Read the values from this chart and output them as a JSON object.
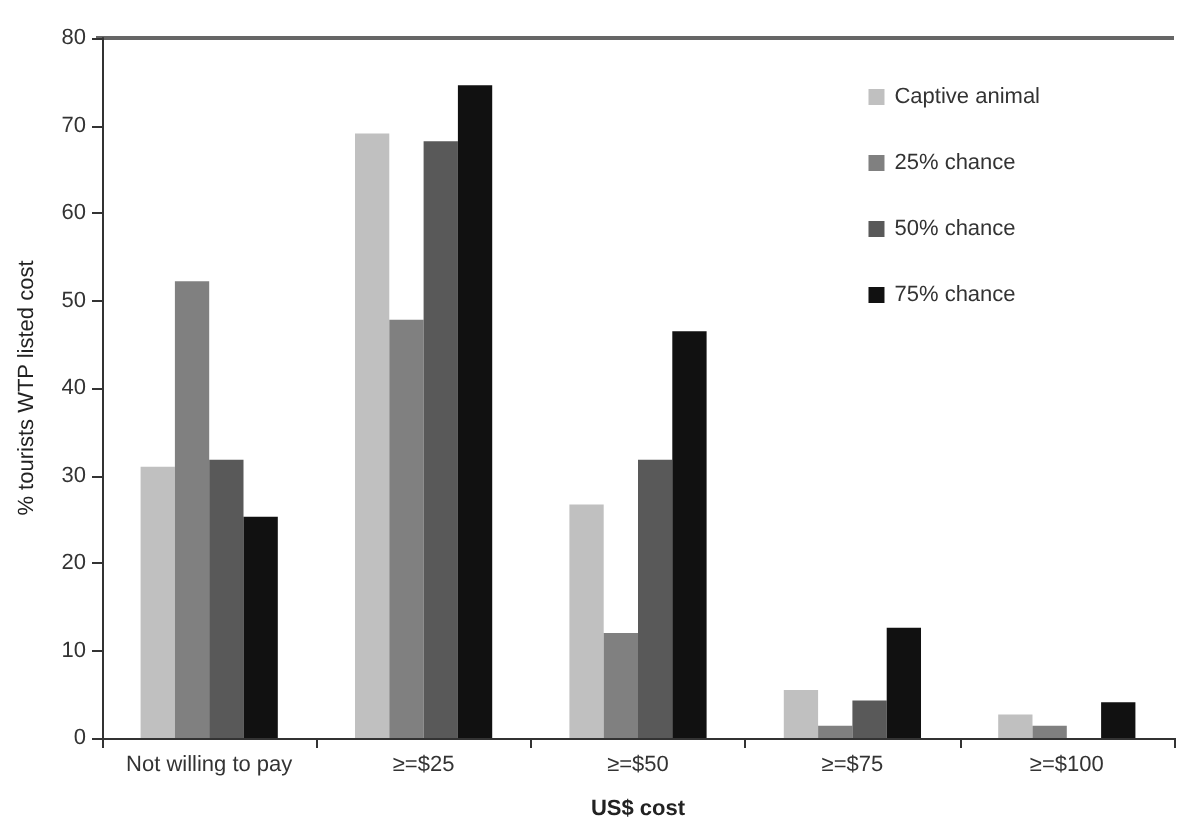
{
  "chart_data": {
    "type": "bar",
    "xlabel": "US$ cost",
    "ylabel": "% tourists WTP listed cost",
    "categories": [
      "Not willing to pay",
      "≥=$25",
      "≥=$50",
      "≥=$75",
      "≥=$100"
    ],
    "series": [
      {
        "name": "Captive animal",
        "color": "#c0c0c0",
        "values": [
          31,
          69.1,
          26.7,
          5.5,
          2.7
        ]
      },
      {
        "name": "25% chance",
        "color": "#808080",
        "values": [
          52.2,
          47.8,
          12,
          1.4,
          1.4
        ]
      },
      {
        "name": "50% chance",
        "color": "#595959",
        "values": [
          31.8,
          68.2,
          31.8,
          4.3,
          0
        ]
      },
      {
        "name": "75% chance",
        "color": "#111111",
        "values": [
          25.3,
          74.6,
          46.5,
          12.6,
          4.1
        ]
      }
    ],
    "ylim": [
      0,
      80
    ],
    "yticks": [
      0,
      10,
      20,
      30,
      40,
      50,
      60,
      70,
      80
    ],
    "grid": false,
    "legend": "top right"
  }
}
